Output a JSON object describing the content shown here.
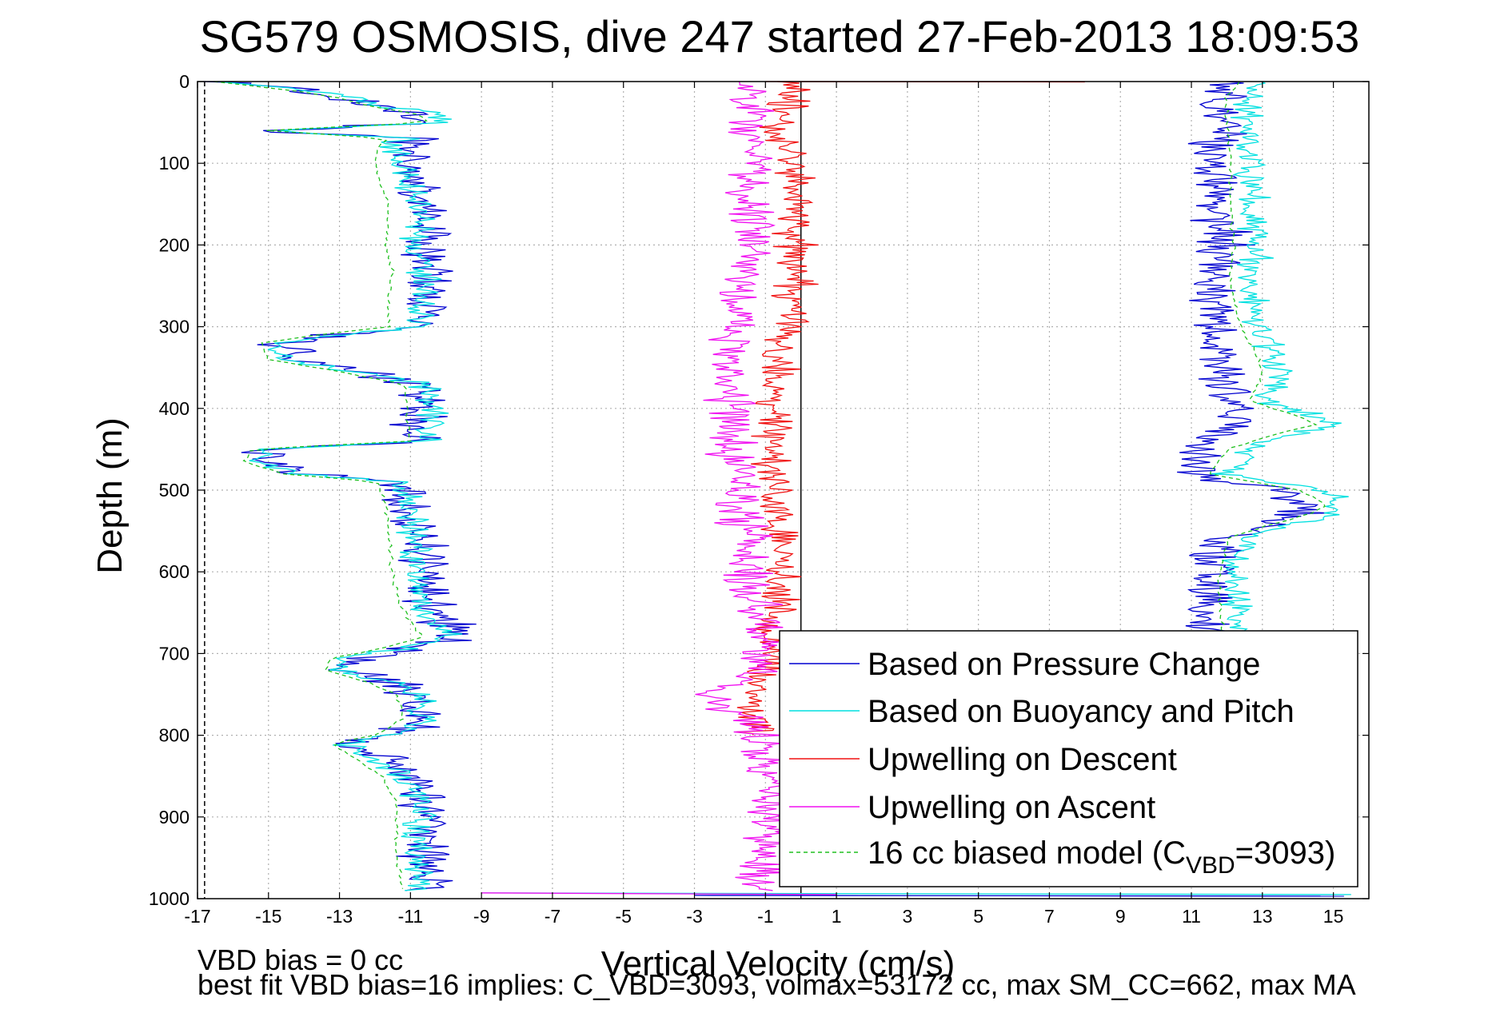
{
  "chart_data": {
    "type": "line",
    "title": "SG579 OSMOSIS, dive 247 started 27-Feb-2013 18:09:53",
    "xlabel": "Vertical Velocity (cm/s)",
    "ylabel": "Depth (m)",
    "xlim": [
      -17,
      16
    ],
    "ylim": [
      1000,
      0
    ],
    "y_reversed": true,
    "grid": true,
    "legend_position": "lower-right",
    "x_ticks": [
      -17,
      -15,
      -13,
      -11,
      -9,
      -7,
      -5,
      -3,
      -1,
      1,
      3,
      5,
      7,
      9,
      11,
      13,
      15
    ],
    "y_ticks": [
      0,
      100,
      200,
      300,
      400,
      500,
      600,
      700,
      800,
      900,
      1000
    ],
    "annotations": [
      "VBD bias = 0 cc",
      "best fit VBD bias=16 implies: C_VBD=3093, volmax=53172 cc, max SM_CC=662, max MA"
    ],
    "legend": {
      "pressure": "Based on Pressure Change",
      "buoyancy": "Based on Buoyancy and Pitch",
      "descent": "Upwelling on Descent",
      "ascent": "Upwelling on Ascent",
      "model_pre": "16 cc biased model (C",
      "model_sub": "VBD",
      "model_post": "=3093)"
    },
    "series": [
      {
        "key": "pressure",
        "color": "#0000d0",
        "style": "solid",
        "segments": [
          {
            "depth": [
              0,
              10,
              20,
              30,
              40,
              50,
              60,
              70,
              80,
              100,
              130,
              160,
              200,
              230,
              260,
              300,
              310,
              320,
              340,
              355,
              370,
              400,
              420,
              440,
              450,
              465,
              480,
              490,
              520,
              560,
              600,
              640,
              680,
              695,
              705,
              720,
              735,
              750,
              780,
              800,
              810,
              820,
              850,
              880,
              900,
              950,
              990
            ],
            "v": [
              -16.5,
              -14.0,
              -13.0,
              -12.0,
              -10.5,
              -10.3,
              -15.0,
              -11.0,
              -11.2,
              -11.0,
              -10.8,
              -10.5,
              -10.6,
              -10.4,
              -10.5,
              -10.6,
              -13.0,
              -14.5,
              -14.2,
              -12.5,
              -10.6,
              -10.7,
              -10.8,
              -10.6,
              -15.0,
              -15.2,
              -14.0,
              -11.2,
              -11.0,
              -10.8,
              -10.6,
              -10.4,
              -9.8,
              -11.0,
              -12.5,
              -12.8,
              -11.5,
              -10.9,
              -10.6,
              -11.5,
              -12.6,
              -12.2,
              -11.0,
              -10.5,
              -10.5,
              -10.5,
              -10.6
            ]
          },
          {
            "depth": [
              0,
              10,
              20,
              50,
              100,
              150,
              200,
              250,
              300,
              350,
              380,
              400,
              420,
              430,
              450,
              480,
              500,
              510,
              520,
              530,
              545,
              560,
              600,
              640,
              680,
              700
            ],
            "v": [
              12.3,
              12.0,
              11.8,
              11.9,
              11.6,
              11.7,
              11.9,
              11.5,
              11.7,
              11.8,
              12.0,
              12.2,
              12.5,
              11.5,
              11.0,
              11.0,
              13.5,
              14.0,
              14.3,
              14.0,
              13.0,
              11.6,
              11.6,
              11.4,
              11.5,
              11.6
            ]
          },
          {
            "depth": [
              996,
              997
            ],
            "v": [
              -3.0,
              15.3
            ]
          }
        ]
      },
      {
        "key": "buoyancy",
        "color": "#00e0e0",
        "style": "solid",
        "segments": [
          {
            "depth": [
              0,
              10,
              20,
              30,
              40,
              50,
              60,
              70,
              80,
              100,
              130,
              160,
              200,
              230,
              260,
              300,
              310,
              320,
              340,
              355,
              370,
              400,
              420,
              440,
              450,
              465,
              480,
              490,
              520,
              560,
              600,
              640,
              680,
              695,
              705,
              720,
              735,
              750,
              780,
              800,
              810,
              820,
              850,
              880,
              900,
              950,
              990
            ],
            "v": [
              -16.4,
              -14.0,
              -12.5,
              -11.8,
              -10.3,
              -10.2,
              -14.8,
              -11.2,
              -11.5,
              -11.3,
              -11.0,
              -10.8,
              -10.9,
              -10.6,
              -10.7,
              -10.8,
              -13.2,
              -14.8,
              -14.6,
              -12.6,
              -10.6,
              -10.4,
              -10.4,
              -10.4,
              -15.1,
              -15.3,
              -14.2,
              -11.3,
              -11.0,
              -10.9,
              -10.8,
              -10.6,
              -10.0,
              -11.3,
              -12.8,
              -13.0,
              -11.6,
              -10.7,
              -10.5,
              -11.4,
              -12.8,
              -12.4,
              -11.2,
              -10.8,
              -10.8,
              -10.8,
              -10.8
            ]
          },
          {
            "depth": [
              0,
              10,
              20,
              50,
              100,
              150,
              200,
              250,
              300,
              330,
              360,
              390,
              410,
              420,
              430,
              450,
              480,
              500,
              510,
              520,
              530,
              545,
              560,
              600,
              640,
              680,
              700
            ],
            "v": [
              13.0,
              12.8,
              12.6,
              12.6,
              12.7,
              12.7,
              12.8,
              12.7,
              12.9,
              13.2,
              13.5,
              13.0,
              14.5,
              15.0,
              14.0,
              12.5,
              12.0,
              14.5,
              15.0,
              15.2,
              14.8,
              13.5,
              12.5,
              12.2,
              12.2,
              12.3,
              12.3
            ]
          },
          {
            "depth": [
              993,
              995
            ],
            "v": [
              -9.0,
              15.5
            ]
          }
        ]
      },
      {
        "key": "model",
        "color": "#20c020",
        "style": "dashed",
        "segments": [
          {
            "depth": [
              0,
              10,
              20,
              30,
              40,
              50,
              60,
              70,
              80,
              100,
              130,
              160,
              200,
              230,
              260,
              300,
              310,
              320,
              340,
              355,
              370,
              400,
              420,
              440,
              450,
              465,
              480,
              490,
              520,
              560,
              600,
              640,
              680,
              695,
              705,
              720,
              735,
              750,
              780,
              800,
              810,
              820,
              850,
              880,
              900,
              950,
              990
            ],
            "v": [
              -16.5,
              -14.5,
              -13.0,
              -12.2,
              -10.8,
              -10.5,
              -15.0,
              -11.6,
              -11.9,
              -12.0,
              -11.8,
              -11.6,
              -11.7,
              -11.5,
              -11.6,
              -11.6,
              -13.6,
              -15.2,
              -15.0,
              -13.0,
              -11.2,
              -11.1,
              -11.1,
              -11.0,
              -15.5,
              -15.7,
              -14.6,
              -11.9,
              -11.7,
              -11.6,
              -11.5,
              -11.3,
              -10.7,
              -11.9,
              -13.2,
              -13.4,
              -12.2,
              -11.4,
              -11.2,
              -12.0,
              -13.2,
              -12.9,
              -11.8,
              -11.4,
              -11.4,
              -11.4,
              -11.2
            ]
          },
          {
            "depth": [
              0,
              10,
              20,
              50,
              100,
              150,
              200,
              250,
              300,
              330,
              360,
              390,
              410,
              420,
              430,
              450,
              480,
              500,
              510,
              520,
              530,
              545,
              560,
              600,
              640,
              680,
              700
            ],
            "v": [
              12.4,
              12.2,
              12.0,
              12.0,
              12.1,
              12.1,
              12.2,
              12.1,
              12.4,
              12.8,
              13.0,
              12.6,
              14.0,
              14.5,
              13.5,
              12.0,
              11.5,
              14.0,
              14.5,
              14.8,
              14.3,
              13.0,
              12.0,
              11.8,
              11.8,
              11.9,
              11.9
            ]
          }
        ]
      },
      {
        "key": "descent",
        "color": "#f01010",
        "style": "solid",
        "segments": [
          {
            "depth": [
              0,
              20,
              60,
              100,
              150,
              200,
              250,
              300,
              350,
              380,
              400,
              420,
              450,
              480,
              520,
              560,
              600,
              640,
              680,
              720,
              760,
              800
            ],
            "v": [
              -0.5,
              -0.3,
              -0.6,
              -0.2,
              -0.1,
              -0.2,
              -0.1,
              -0.3,
              -0.6,
              -1.0,
              -0.9,
              -0.8,
              -0.8,
              -0.9,
              -0.8,
              -0.6,
              -0.5,
              -0.7,
              -0.8,
              -1.0,
              -1.3,
              -1.3
            ]
          },
          {
            "depth": [
              0,
              0.5
            ],
            "v": [
              -1.0,
              8.0
            ]
          }
        ]
      },
      {
        "key": "ascent",
        "color": "#f010f0",
        "style": "solid",
        "segments": [
          {
            "depth": [
              0,
              20,
              60,
              100,
              150,
              200,
              250,
              300,
              350,
              400,
              450,
              500,
              550,
              600,
              650,
              700,
              720,
              740,
              760,
              780,
              800,
              850,
              900,
              950,
              990
            ],
            "v": [
              -1.8,
              -1.5,
              -1.3,
              -1.3,
              -1.4,
              -1.4,
              -1.6,
              -1.8,
              -2.0,
              -2.0,
              -2.0,
              -1.9,
              -1.5,
              -1.5,
              -1.3,
              -1.0,
              -1.2,
              -2.0,
              -2.8,
              -1.7,
              -1.2,
              -1.0,
              -0.8,
              -1.0,
              -1.3
            ]
          },
          {
            "depth": [
              993,
              995
            ],
            "v": [
              -9.0,
              1.0
            ]
          }
        ]
      }
    ]
  }
}
